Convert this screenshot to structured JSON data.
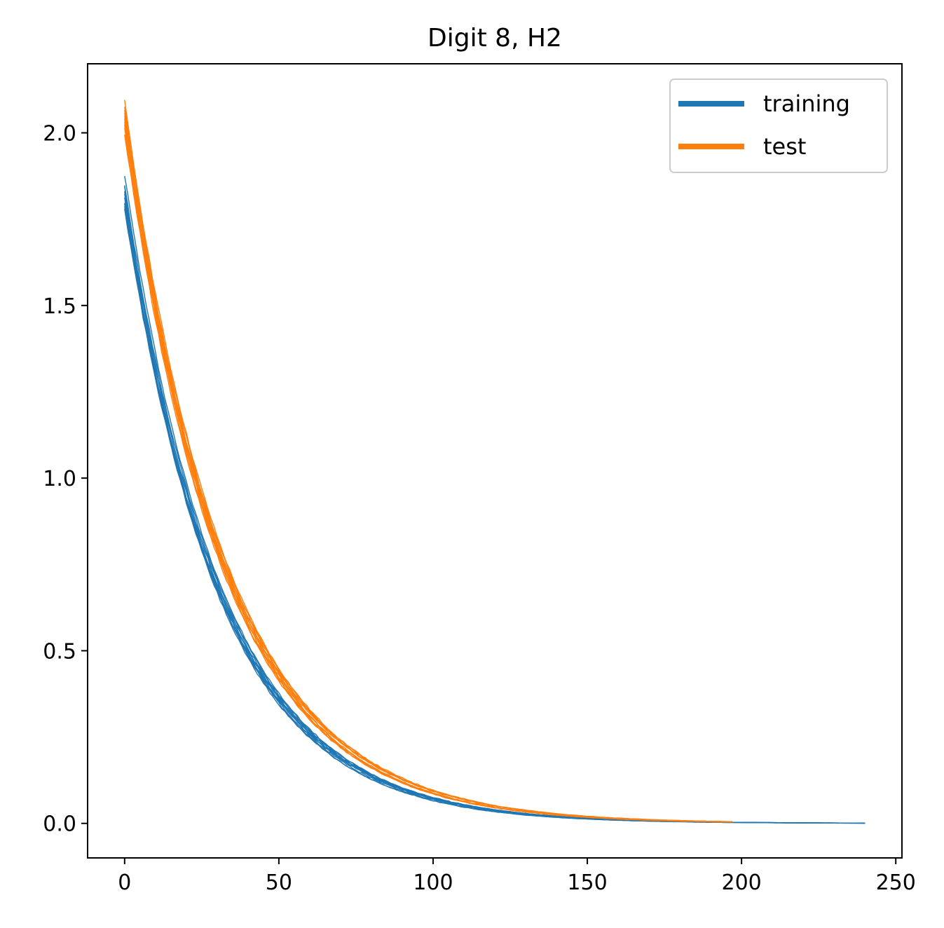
{
  "chart_data": {
    "type": "line",
    "title": "Digit 8, H2",
    "xlabel": "",
    "ylabel": "",
    "xlim": [
      -12,
      252
    ],
    "ylim": [
      -0.1,
      2.2
    ],
    "xticks": [
      0,
      50,
      100,
      150,
      200,
      250
    ],
    "yticks": [
      0.0,
      0.5,
      1.0,
      1.5,
      2.0
    ],
    "grid": false,
    "legend": {
      "placement": "top-right",
      "entries": [
        {
          "label": "training",
          "color": "#1f77b4"
        },
        {
          "label": "test",
          "color": "#ff7f0e"
        }
      ]
    },
    "series": [
      {
        "name": "training",
        "color": "#1f77b4",
        "runs": 10,
        "x": [
          0,
          240
        ],
        "start_values": [
          1.88,
          1.85,
          1.83,
          1.82,
          1.8,
          1.79,
          1.78,
          1.81,
          1.84,
          1.8
        ],
        "end_value": 0.0,
        "approx_y_at": {
          "25": 0.95,
          "50": 0.36,
          "75": 0.14,
          "100": 0.045,
          "150": 0.004
        }
      },
      {
        "name": "test",
        "color": "#ff7f0e",
        "runs": 10,
        "x": [
          0,
          197
        ],
        "start_values": [
          2.09,
          2.07,
          2.05,
          2.03,
          2.01,
          2.08,
          2.06,
          2.04,
          2.02,
          2.0
        ],
        "end_value": 0.0,
        "approx_y_at": {
          "25": 1.05,
          "50": 0.43,
          "75": 0.17,
          "100": 0.055,
          "150": 0.006
        }
      }
    ]
  }
}
